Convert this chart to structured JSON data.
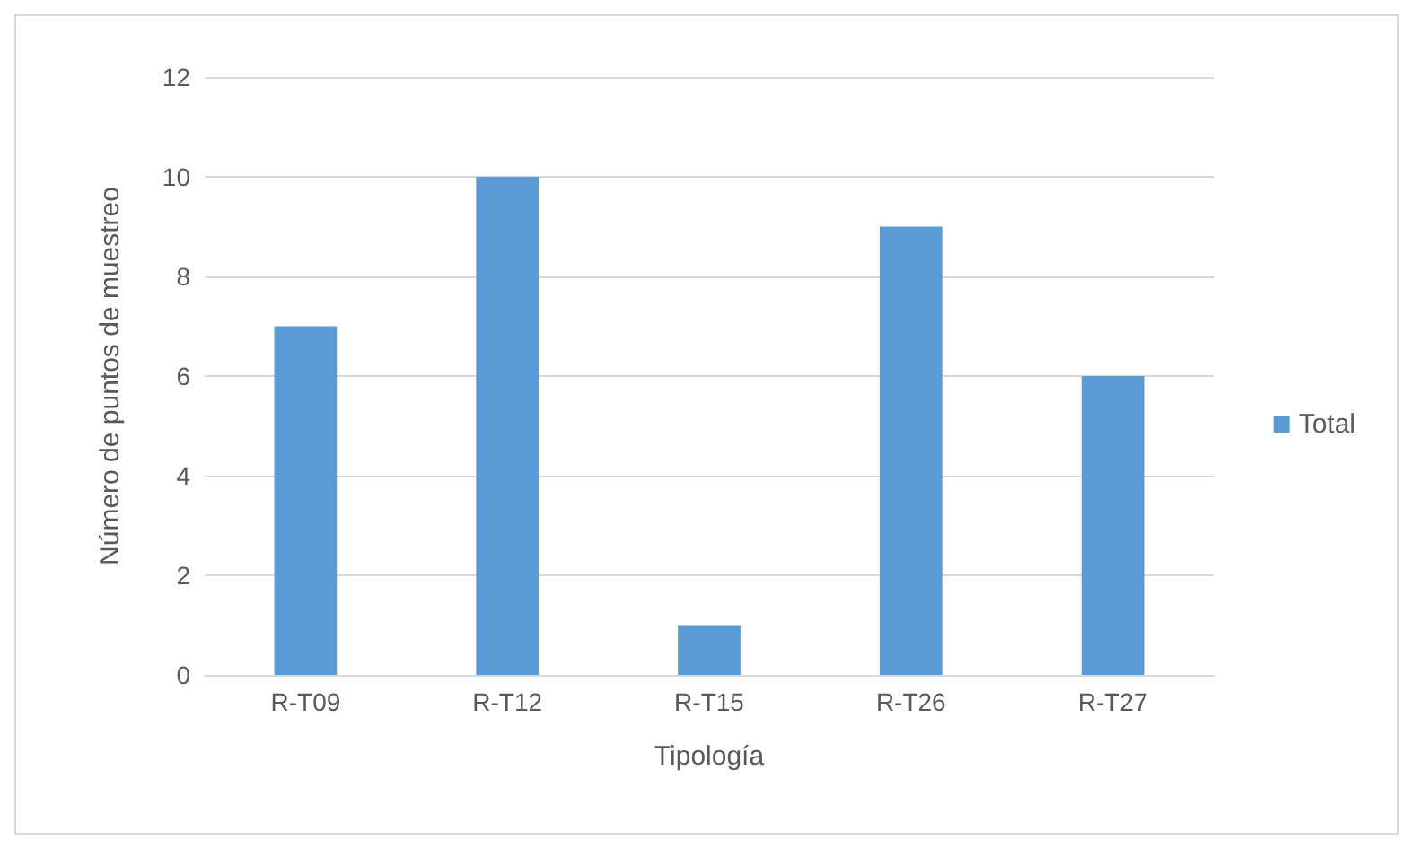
{
  "chart_data": {
    "type": "bar",
    "xlabel": "Tipología",
    "ylabel": "Número de puntos de muestreo",
    "categories": [
      "R-T09",
      "R-T12",
      "R-T15",
      "R-T26",
      "R-T27"
    ],
    "series": [
      {
        "name": "Total",
        "color": "#5b9bd5",
        "values": [
          7,
          10,
          1,
          9,
          6
        ]
      }
    ],
    "ylim": [
      0,
      12
    ],
    "yticks": [
      0,
      2,
      4,
      6,
      8,
      10,
      12
    ],
    "grid": "y",
    "legend": "right"
  }
}
